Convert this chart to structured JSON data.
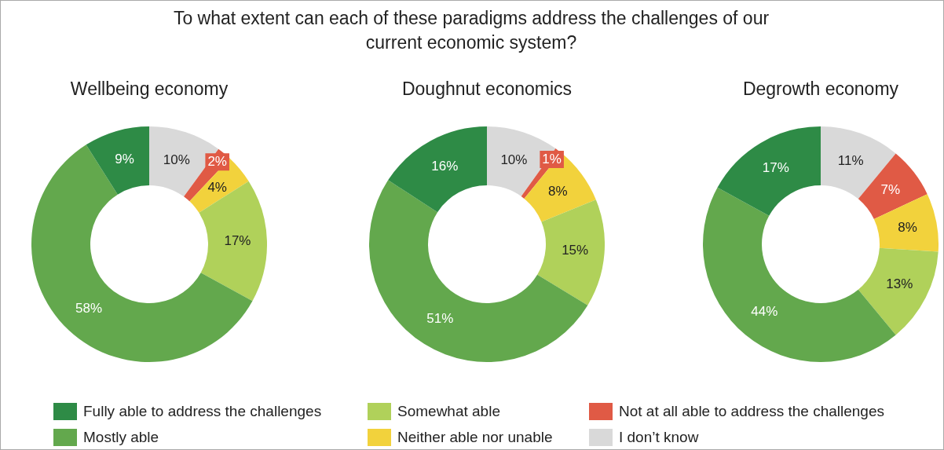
{
  "chart_data": [
    {
      "type": "donut",
      "title": "To what extent can each of these paradigms address the challenges of our current economic system?",
      "subtitle": "Wellbeing economy",
      "categories": [
        "I don’t know",
        "Not at all able to address the challenges",
        "Neither able nor unable",
        "Somewhat able",
        "Mostly able",
        "Fully able to address the challenges"
      ],
      "values": [
        10,
        2,
        4,
        17,
        58,
        9
      ],
      "value_labels": [
        "10%",
        "2%",
        "4%",
        "17%",
        "58%",
        "9%"
      ],
      "colors": [
        "#d9d9d9",
        "#e05a45",
        "#f2d23c",
        "#b0d15a",
        "#63a84d",
        "#2e8b46"
      ],
      "legend": "bottom"
    },
    {
      "type": "donut",
      "subtitle": "Doughnut economics",
      "values": [
        10,
        1,
        8,
        15,
        51,
        16
      ],
      "value_labels": [
        "10%",
        "1%",
        "8%",
        "15%",
        "51%",
        "16%"
      ],
      "colors": [
        "#d9d9d9",
        "#e05a45",
        "#f2d23c",
        "#b0d15a",
        "#63a84d",
        "#2e8b46"
      ]
    },
    {
      "type": "donut",
      "subtitle": "Degrowth economy",
      "values": [
        11,
        7,
        8,
        13,
        44,
        17
      ],
      "value_labels": [
        "11%",
        "7%",
        "8%",
        "13%",
        "44%",
        "17%"
      ],
      "colors": [
        "#d9d9d9",
        "#e05a45",
        "#f2d23c",
        "#b0d15a",
        "#63a84d",
        "#2e8b46"
      ]
    }
  ]
}
